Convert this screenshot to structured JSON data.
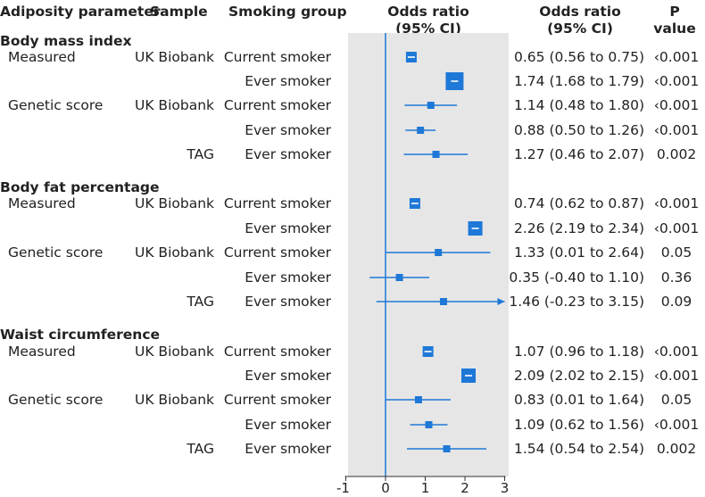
{
  "header": {
    "parameter": "Adiposity parameter",
    "sample": "Sample",
    "smoking": "Smoking group",
    "or_line1": "Odds ratio",
    "or_line2": "(95% CI)",
    "ortext_line1": "Odds ratio",
    "ortext_line2": "(95% CI)",
    "p_line1": "P",
    "p_line2": "value"
  },
  "sections": [
    {
      "title": "Body mass index"
    },
    {
      "title": "Body fat percentage"
    },
    {
      "title": "Waist circumference"
    }
  ],
  "rows": [
    {
      "param": "Measured",
      "sample": "UK Biobank",
      "group": "Current smoker",
      "ci": "0.65 (0.56 to 0.75)",
      "p": "‹0.001"
    },
    {
      "param": "",
      "sample": "",
      "group": "Ever smoker",
      "ci": "1.74 (1.68 to 1.79)",
      "p": "‹0.001"
    },
    {
      "param": "Genetic score",
      "sample": "UK Biobank",
      "group": "Current smoker",
      "ci": "1.14 (0.48 to 1.80)",
      "p": "‹0.001"
    },
    {
      "param": "",
      "sample": "",
      "group": "Ever smoker",
      "ci": "0.88 (0.50 to 1.26)",
      "p": "‹0.001"
    },
    {
      "param": "",
      "sample": "TAG",
      "group": "Ever smoker",
      "ci": "1.27 (0.46 to 2.07)",
      "p": "0.002"
    },
    {
      "param": "Measured",
      "sample": "UK Biobank",
      "group": "Current smoker",
      "ci": "0.74 (0.62 to 0.87)",
      "p": "‹0.001"
    },
    {
      "param": "",
      "sample": "",
      "group": "Ever smoker",
      "ci": "2.26 (2.19 to 2.34)",
      "p": "‹0.001"
    },
    {
      "param": "Genetic score",
      "sample": "UK Biobank",
      "group": "Current smoker",
      "ci": "1.33 (0.01 to 2.64)",
      "p": "0.05"
    },
    {
      "param": "",
      "sample": "",
      "group": "Ever smoker",
      "ci": "0.35 (-0.40 to 1.10)",
      "p": "0.36"
    },
    {
      "param": "",
      "sample": "TAG",
      "group": "Ever smoker",
      "ci": "1.46 (-0.23 to 3.15)",
      "p": "0.09"
    },
    {
      "param": "Measured",
      "sample": "UK Biobank",
      "group": "Current smoker",
      "ci": "1.07 (0.96 to 1.18)",
      "p": "‹0.001"
    },
    {
      "param": "",
      "sample": "",
      "group": "Ever smoker",
      "ci": "2.09 (2.02 to 2.15)",
      "p": "‹0.001"
    },
    {
      "param": "Genetic score",
      "sample": "UK Biobank",
      "group": "Current smoker",
      "ci": "0.83 (0.01 to 1.64)",
      "p": "0.05"
    },
    {
      "param": "",
      "sample": "",
      "group": "Ever smoker",
      "ci": "1.09 (0.62 to 1.56)",
      "p": "‹0.001"
    },
    {
      "param": "",
      "sample": "TAG",
      "group": "Ever smoker",
      "ci": "1.54 (0.54 to 2.54)",
      "p": "0.002"
    }
  ],
  "chart_data": {
    "type": "forest",
    "title": "",
    "xlabel": "",
    "ylabel": "",
    "xlim": [
      -1,
      3
    ],
    "xticks": [
      -1,
      0,
      1,
      2,
      3
    ],
    "reference_line": 0,
    "colors": {
      "marker": "#1e78d7",
      "panel": "#e6e6e6",
      "axis": "#333333"
    },
    "points": [
      {
        "est": 0.65,
        "lo": 0.56,
        "hi": 0.75
      },
      {
        "est": 1.74,
        "lo": 1.68,
        "hi": 1.79
      },
      {
        "est": 1.14,
        "lo": 0.48,
        "hi": 1.8
      },
      {
        "est": 0.88,
        "lo": 0.5,
        "hi": 1.26
      },
      {
        "est": 1.27,
        "lo": 0.46,
        "hi": 2.07
      },
      {
        "est": 0.74,
        "lo": 0.62,
        "hi": 0.87
      },
      {
        "est": 2.26,
        "lo": 2.19,
        "hi": 2.34
      },
      {
        "est": 1.33,
        "lo": 0.01,
        "hi": 2.64
      },
      {
        "est": 0.35,
        "lo": -0.4,
        "hi": 1.1
      },
      {
        "est": 1.46,
        "lo": -0.23,
        "hi": 3.15
      },
      {
        "est": 1.07,
        "lo": 0.96,
        "hi": 1.18
      },
      {
        "est": 2.09,
        "lo": 2.02,
        "hi": 2.15
      },
      {
        "est": 0.83,
        "lo": 0.01,
        "hi": 1.64
      },
      {
        "est": 1.09,
        "lo": 0.62,
        "hi": 1.56
      },
      {
        "est": 1.54,
        "lo": 0.54,
        "hi": 2.54
      }
    ],
    "marker_weights": [
      0.5,
      1.0,
      0.25,
      0.25,
      0.25,
      0.5,
      0.75,
      0.25,
      0.25,
      0.25,
      0.5,
      0.75,
      0.25,
      0.25,
      0.25
    ]
  }
}
